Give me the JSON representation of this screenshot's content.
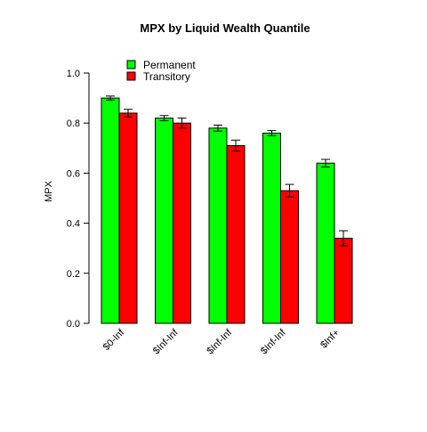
{
  "chart_data": {
    "type": "bar",
    "title": "MPX  by  Liquid Wealth Quantile",
    "xlabel": "",
    "ylabel": "MPX",
    "ylim": [
      0,
      1
    ],
    "yticks": [
      "0.0",
      "0.2",
      "0.4",
      "0.6",
      "0.8",
      "1.0"
    ],
    "categories": [
      "$0-Inf",
      "$Inf-Inf",
      "$Inf-Inf",
      "$Inf-Inf",
      "$Inf+"
    ],
    "series": [
      {
        "name": "Permanent",
        "color": "#00ff00",
        "values": [
          0.9,
          0.82,
          0.78,
          0.76,
          0.64
        ],
        "error": [
          0.008,
          0.01,
          0.012,
          0.01,
          0.015
        ]
      },
      {
        "name": "Transitory",
        "color": "#ff0000",
        "values": [
          0.84,
          0.8,
          0.71,
          0.53,
          0.34
        ],
        "error": [
          0.015,
          0.02,
          0.022,
          0.025,
          0.03
        ]
      }
    ],
    "legend_position": "top-left",
    "grid": false
  }
}
